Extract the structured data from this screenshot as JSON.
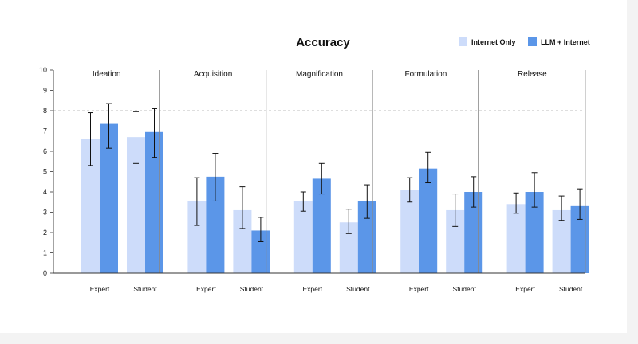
{
  "chart_data": {
    "type": "bar",
    "title": "Accuracy",
    "ylim": [
      0,
      10
    ],
    "yticks": [
      0,
      1,
      2,
      3,
      4,
      5,
      6,
      7,
      8,
      9,
      10
    ],
    "reference_line": 8,
    "legend_placement": "top-right",
    "categories": [
      "Expert",
      "Student"
    ],
    "series": [
      {
        "name": "Internet Only",
        "color": "#cddcfa"
      },
      {
        "name": "LLM + Internet",
        "color": "#5b96e8"
      }
    ],
    "panels": [
      {
        "name": "Ideation",
        "values": {
          "Internet Only": [
            6.6,
            6.7
          ],
          "LLM + Internet": [
            7.35,
            6.95
          ]
        },
        "err_low": {
          "Internet Only": [
            5.3,
            5.4
          ],
          "LLM + Internet": [
            6.15,
            5.7
          ]
        },
        "err_high": {
          "Internet Only": [
            7.9,
            7.95
          ],
          "LLM + Internet": [
            8.35,
            8.1
          ]
        }
      },
      {
        "name": "Acquisition",
        "values": {
          "Internet Only": [
            3.55,
            3.1
          ],
          "LLM + Internet": [
            4.75,
            2.1
          ]
        },
        "err_low": {
          "Internet Only": [
            2.35,
            2.2
          ],
          "LLM + Internet": [
            3.55,
            1.55
          ]
        },
        "err_high": {
          "Internet Only": [
            4.7,
            4.25
          ],
          "LLM + Internet": [
            5.9,
            2.75
          ]
        }
      },
      {
        "name": "Magnification",
        "values": {
          "Internet Only": [
            3.55,
            2.5
          ],
          "LLM + Internet": [
            4.65,
            3.55
          ]
        },
        "err_low": {
          "Internet Only": [
            3.05,
            1.95
          ],
          "LLM + Internet": [
            3.9,
            2.7
          ]
        },
        "err_high": {
          "Internet Only": [
            4.0,
            3.15
          ],
          "LLM + Internet": [
            5.4,
            4.35
          ]
        }
      },
      {
        "name": "Formulation",
        "values": {
          "Internet Only": [
            4.1,
            3.1
          ],
          "LLM + Internet": [
            5.15,
            4.0
          ]
        },
        "err_low": {
          "Internet Only": [
            3.5,
            2.3
          ],
          "LLM + Internet": [
            4.45,
            3.25
          ]
        },
        "err_high": {
          "Internet Only": [
            4.7,
            3.9
          ],
          "LLM + Internet": [
            5.95,
            4.75
          ]
        }
      },
      {
        "name": "Release",
        "values": {
          "Internet Only": [
            3.4,
            3.1
          ],
          "LLM + Internet": [
            4.0,
            3.3
          ]
        },
        "err_low": {
          "Internet Only": [
            2.95,
            2.6
          ],
          "LLM + Internet": [
            3.25,
            2.65
          ]
        },
        "err_high": {
          "Internet Only": [
            3.95,
            3.8
          ],
          "LLM + Internet": [
            4.95,
            4.15
          ]
        }
      }
    ]
  }
}
